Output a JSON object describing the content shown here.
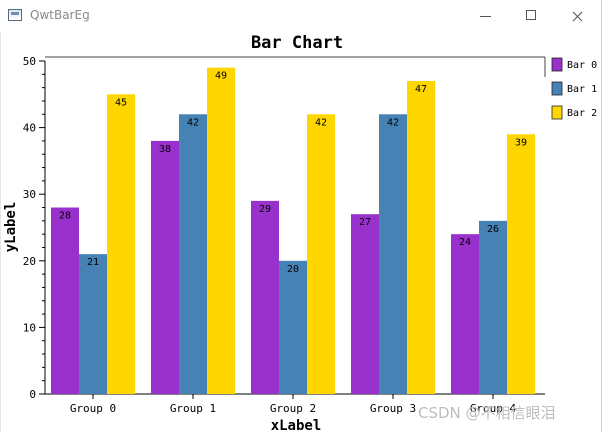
{
  "window": {
    "title": "QwtBarEg"
  },
  "chart_data": {
    "type": "bar",
    "title": "Bar Chart",
    "xlabel": "xLabel",
    "ylabel": "yLabel",
    "ylim": [
      0,
      50
    ],
    "yticks": [
      "0",
      "10",
      "20",
      "30",
      "40",
      "50"
    ],
    "categories": [
      "Group 0",
      "Group 1",
      "Group 2",
      "Group 3",
      "Group 4"
    ],
    "series": [
      {
        "name": "Bar 0",
        "color": "#9932cc",
        "values": [
          28,
          38,
          29,
          27,
          24
        ]
      },
      {
        "name": "Bar 1",
        "color": "#4682b4",
        "values": [
          21,
          42,
          20,
          42,
          26
        ]
      },
      {
        "name": "Bar 2",
        "color": "#ffd700",
        "values": [
          45,
          49,
          42,
          47,
          39
        ]
      }
    ],
    "legend": "right",
    "data_labels": true
  },
  "watermark": "CSDN @不相信眼泪"
}
